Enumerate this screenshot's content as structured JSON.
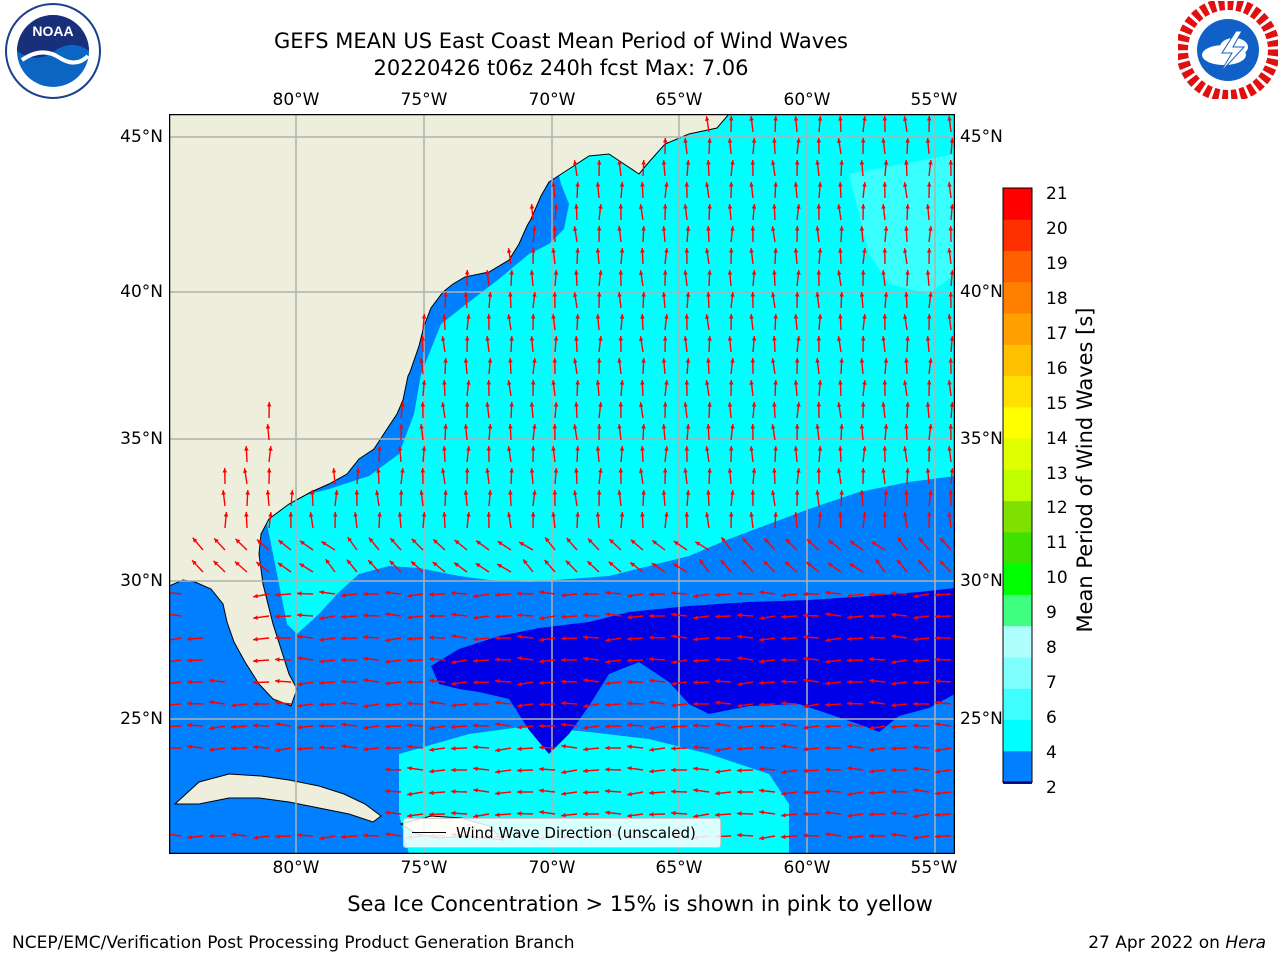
{
  "header": {
    "title_line1": "GEFS MEAN US East Coast Mean Period of Wind Waves",
    "title_line2": "20220426 t06z 240h fcst   Max: 7.06"
  },
  "logos": {
    "left": "NOAA",
    "left_ring": "NATIONAL OCEANIC AND ATMOSPHERIC ADMINISTRATION · U.S. DEPARTMENT OF COMMERCE",
    "right_ring": "NATIONAL WEATHER SERVICE"
  },
  "map": {
    "lon_labels": [
      "80°W",
      "75°W",
      "70°W",
      "65°W",
      "60°W",
      "55°W"
    ],
    "lat_labels": [
      "45°N",
      "40°N",
      "35°N",
      "30°N",
      "25°N"
    ],
    "extent": {
      "lon_min": -85,
      "lon_max": -54.2,
      "lat_min": 20.5,
      "lat_max": 46
    },
    "colors": {
      "land": "#eeeedc",
      "grid": "#b0b0b0",
      "arrow": "#ff0000",
      "coast": "#000000"
    }
  },
  "colorbar": {
    "label": "Mean Period of Wind Waves [s]",
    "ticks": [
      "21",
      "20",
      "19",
      "18",
      "17",
      "16",
      "15",
      "14",
      "13",
      "12",
      "11",
      "10",
      "9",
      "8",
      "7",
      "6",
      "4",
      "2"
    ],
    "colors": [
      "#0000e6",
      "#0080ff",
      "#00ffff",
      "#40ffff",
      "#80ffff",
      "#b0ffff",
      "#40ff80",
      "#00ff00",
      "#40e000",
      "#80e000",
      "#c0ff00",
      "#e0ff00",
      "#ffff00",
      "#ffe000",
      "#ffc000",
      "#ffa000",
      "#ff8000",
      "#ff6000",
      "#ff3000",
      "#ff0000"
    ]
  },
  "legend": {
    "label": "Wind Wave Direction (unscaled)"
  },
  "footer": {
    "sea_ice_note": "Sea Ice Concentration > 15% is shown in pink to yellow",
    "credit": "NCEP/EMC/Verification Post Processing Product Generation Branch",
    "date": "27 Apr 2022 on",
    "host": "Hera"
  }
}
